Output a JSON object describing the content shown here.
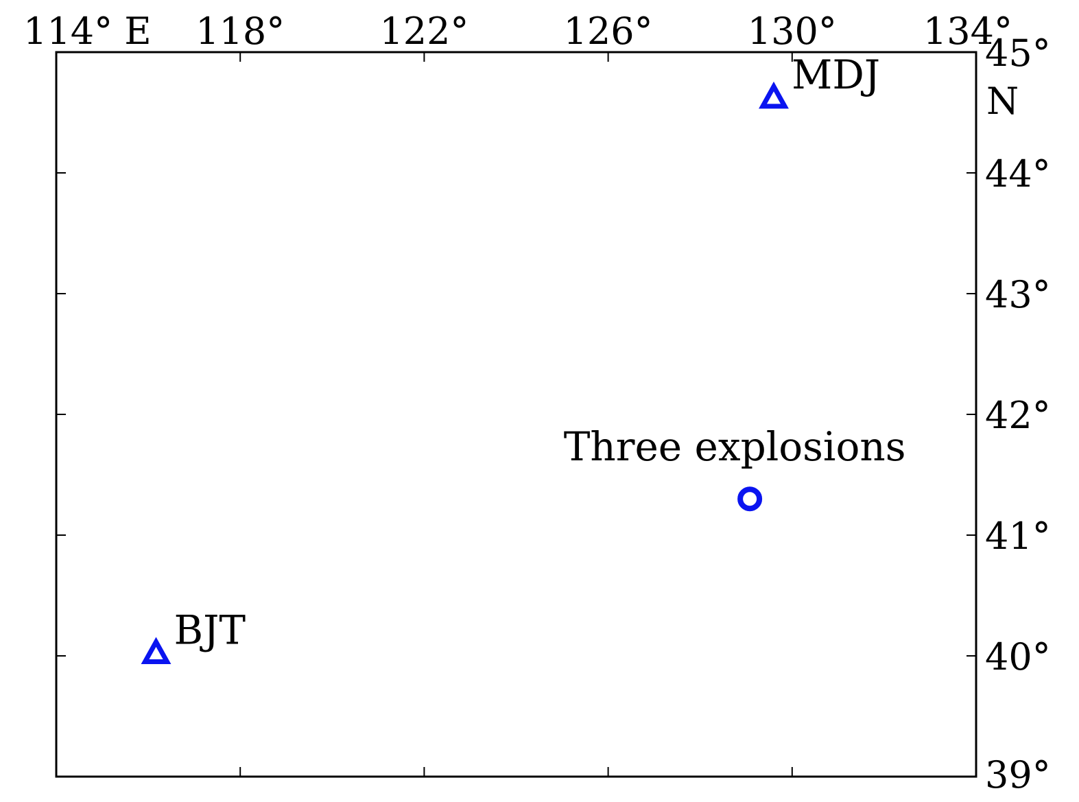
{
  "map": {
    "x_ticks": [
      {
        "value": 114,
        "label": "114° E"
      },
      {
        "value": 118,
        "label": "118°"
      },
      {
        "value": 122,
        "label": "122°"
      },
      {
        "value": 126,
        "label": "126°"
      },
      {
        "value": 130,
        "label": "130°"
      },
      {
        "value": 134,
        "label": "134°"
      }
    ],
    "y_ticks": [
      {
        "value": 45,
        "label": "45°",
        "sublabel": "N"
      },
      {
        "value": 44,
        "label": "44°"
      },
      {
        "value": 43,
        "label": "43°"
      },
      {
        "value": 42,
        "label": "42°"
      },
      {
        "value": 41,
        "label": "41°"
      },
      {
        "value": 40,
        "label": "40°"
      },
      {
        "value": 39,
        "label": "39°"
      }
    ],
    "lon_range": [
      114,
      134
    ],
    "lat_range": [
      39,
      45
    ],
    "marker_color": "#0a14f0",
    "frame_color": "#000000",
    "markers": [
      {
        "type": "station",
        "symbol": "triangle",
        "label": "MDJ",
        "lon": 129.6,
        "lat": 44.62
      },
      {
        "type": "station",
        "symbol": "triangle",
        "label": "BJT",
        "lon": 116.17,
        "lat": 40.02
      },
      {
        "type": "event",
        "symbol": "circle",
        "label": "Three explosions",
        "lon": 129.08,
        "lat": 41.3
      }
    ]
  }
}
